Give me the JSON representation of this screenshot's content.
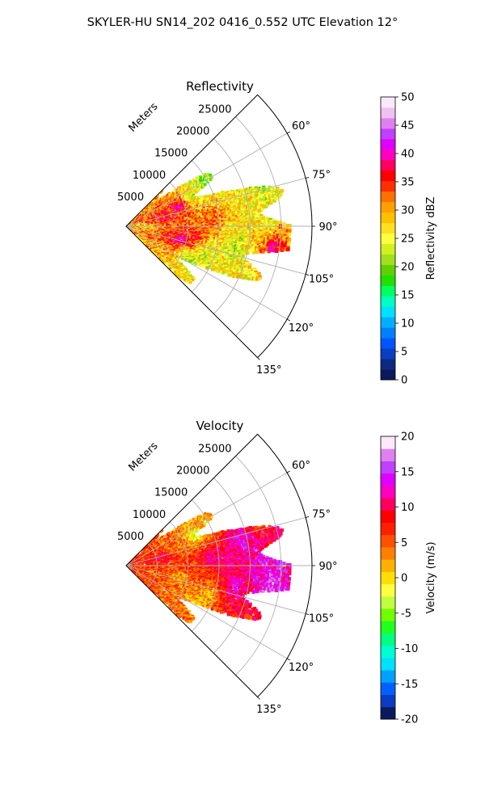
{
  "figure": {
    "suptitle": "SKYLER-HU  SN14_202  0416_0.552 UTC Elevation 12°"
  },
  "colors": {
    "reflectivity_scale": [
      "#0b1a5c",
      "#0b2a80",
      "#0a3dc0",
      "#0055ff",
      "#0080ff",
      "#00b0ff",
      "#00e0ff",
      "#00ffc0",
      "#00ff60",
      "#20e000",
      "#60d000",
      "#a0e020",
      "#d0f020",
      "#ffff40",
      "#ffe020",
      "#ffc000",
      "#ffa000",
      "#ff7000",
      "#ff3000",
      "#ff0000",
      "#ff0060",
      "#ff00c0",
      "#e000ff",
      "#c040ff",
      "#e080f0",
      "#f0c0f0",
      "#fbe8fb"
    ],
    "velocity_scale": [
      "#0b1a5c",
      "#0a3dc0",
      "#0060ff",
      "#00a0ff",
      "#00e0ff",
      "#00ffd0",
      "#00ff80",
      "#20ff20",
      "#70ff00",
      "#c0ff40",
      "#ffff40",
      "#ffe000",
      "#ffb000",
      "#ff8000",
      "#ff5000",
      "#ff2000",
      "#ff0000",
      "#ff0060",
      "#ff00c0",
      "#e000ff",
      "#c040ff",
      "#e080f0",
      "#fbe8fb"
    ],
    "grid": "#b0b0b0"
  },
  "chart_data": [
    {
      "type": "heatmap",
      "title": "Reflectivity",
      "radial_label": "Meters",
      "r_ticks": [
        "5000",
        "10000",
        "15000",
        "20000",
        "25000"
      ],
      "theta_ticks": [
        "60°",
        "75°",
        "90°",
        "105°",
        "120°",
        "135°"
      ],
      "theta_range_deg": [
        45,
        135
      ],
      "r_max_m": 30000,
      "colorbar": {
        "label": "Reflectivity dBZ",
        "range": [
          0,
          50
        ],
        "ticks": [
          "0",
          "5",
          "10",
          "15",
          "20",
          "25",
          "30",
          "35",
          "40",
          "45",
          "50"
        ]
      },
      "echo_cells": [
        {
          "theta": 92,
          "r": 3000,
          "value": 28
        },
        {
          "theta": 78,
          "r": 6000,
          "value": 36
        },
        {
          "theta": 70,
          "r": 9000,
          "value": 38
        },
        {
          "theta": 66,
          "r": 12000,
          "value": 24
        },
        {
          "theta": 60,
          "r": 15000,
          "value": 20
        },
        {
          "theta": 85,
          "r": 14000,
          "value": 33
        },
        {
          "theta": 78,
          "r": 19000,
          "value": 26
        },
        {
          "theta": 97,
          "r": 11000,
          "value": 35
        },
        {
          "theta": 104,
          "r": 9000,
          "value": 40
        },
        {
          "theta": 110,
          "r": 14000,
          "value": 24
        },
        {
          "theta": 101,
          "r": 18000,
          "value": 22
        },
        {
          "theta": 99,
          "r": 24000,
          "value": 38
        },
        {
          "theta": 118,
          "r": 12000,
          "value": 22
        },
        {
          "theta": 113,
          "r": 21000,
          "value": 26
        },
        {
          "theta": 88,
          "r": 23000,
          "value": 25
        },
        {
          "theta": 72,
          "r": 23000,
          "value": 22
        }
      ]
    },
    {
      "type": "heatmap",
      "title": "Velocity",
      "radial_label": "Meters",
      "r_ticks": [
        "5000",
        "10000",
        "15000",
        "20000",
        "25000"
      ],
      "theta_ticks": [
        "60°",
        "75°",
        "90°",
        "105°",
        "120°",
        "135°"
      ],
      "theta_range_deg": [
        45,
        135
      ],
      "r_max_m": 30000,
      "colorbar": {
        "label": "Velocity (m/s)",
        "range": [
          -20,
          20
        ],
        "ticks": [
          "-20",
          "-15",
          "-10",
          "-5",
          "0",
          "5",
          "10",
          "15",
          "20"
        ]
      },
      "echo_cells": [
        {
          "theta": 92,
          "r": 3000,
          "value": 6
        },
        {
          "theta": 78,
          "r": 6000,
          "value": 10
        },
        {
          "theta": 70,
          "r": 9000,
          "value": 4
        },
        {
          "theta": 66,
          "r": 12000,
          "value": -2
        },
        {
          "theta": 60,
          "r": 15000,
          "value": 2
        },
        {
          "theta": 85,
          "r": 14000,
          "value": 12
        },
        {
          "theta": 78,
          "r": 19000,
          "value": 14
        },
        {
          "theta": 97,
          "r": 11000,
          "value": 6
        },
        {
          "theta": 104,
          "r": 9000,
          "value": 2
        },
        {
          "theta": 110,
          "r": 14000,
          "value": 1
        },
        {
          "theta": 101,
          "r": 18000,
          "value": 13
        },
        {
          "theta": 99,
          "r": 24000,
          "value": 16
        },
        {
          "theta": 118,
          "r": 12000,
          "value": 2
        },
        {
          "theta": 113,
          "r": 21000,
          "value": 8
        },
        {
          "theta": 88,
          "r": 23000,
          "value": 14
        },
        {
          "theta": 72,
          "r": 23000,
          "value": 6
        }
      ]
    }
  ]
}
